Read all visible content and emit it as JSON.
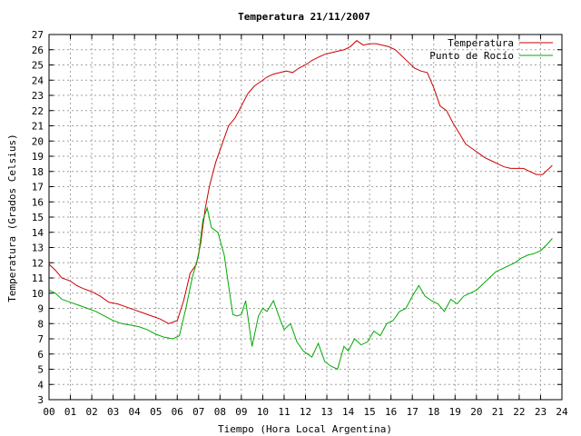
{
  "chart_data": {
    "type": "line",
    "title": "Temperatura 21/11/2007",
    "xlabel": "Tiempo (Hora Local Argentina)",
    "ylabel": "Temperatura (Grados Celsius)",
    "xlim": [
      0,
      24
    ],
    "ylim": [
      3,
      27
    ],
    "x_ticks": [
      "00",
      "01",
      "02",
      "03",
      "04",
      "05",
      "06",
      "07",
      "08",
      "09",
      "10",
      "11",
      "12",
      "13",
      "14",
      "15",
      "16",
      "17",
      "18",
      "19",
      "20",
      "21",
      "22",
      "23",
      "24"
    ],
    "y_ticks": [
      "3",
      "4",
      "5",
      "6",
      "7",
      "8",
      "9",
      "10",
      "11",
      "12",
      "13",
      "14",
      "15",
      "16",
      "17",
      "18",
      "19",
      "20",
      "21",
      "22",
      "23",
      "24",
      "25",
      "26",
      "27"
    ],
    "grid": true,
    "legend_position": "top-right",
    "series": [
      {
        "name": "Temperatura",
        "color": "#cc0000",
        "x": [
          0,
          0.3,
          0.6,
          1.0,
          1.3,
          1.6,
          2.0,
          2.4,
          2.8,
          3.2,
          3.6,
          4.0,
          4.4,
          4.8,
          5.2,
          5.6,
          6.0,
          6.3,
          6.6,
          6.9,
          7.1,
          7.3,
          7.5,
          7.8,
          8.1,
          8.4,
          8.7,
          9.0,
          9.3,
          9.6,
          9.9,
          10.2,
          10.5,
          10.8,
          11.1,
          11.4,
          11.7,
          12.0,
          12.3,
          12.6,
          12.9,
          13.2,
          13.5,
          13.8,
          14.1,
          14.4,
          14.7,
          15.0,
          15.3,
          15.6,
          15.9,
          16.2,
          16.5,
          16.8,
          17.1,
          17.4,
          17.7,
          18.0,
          18.3,
          18.6,
          18.9,
          19.2,
          19.5,
          19.8,
          20.1,
          20.4,
          20.7,
          21.0,
          21.3,
          21.6,
          21.9,
          22.2,
          22.5,
          22.8,
          23.1,
          23.4,
          23.55
        ],
        "values": [
          11.9,
          11.5,
          11.0,
          10.8,
          10.5,
          10.3,
          10.1,
          9.8,
          9.4,
          9.3,
          9.1,
          8.9,
          8.7,
          8.5,
          8.3,
          8.0,
          8.2,
          9.5,
          11.3,
          11.9,
          13.3,
          15.5,
          17.0,
          18.6,
          19.8,
          21.0,
          21.5,
          22.3,
          23.1,
          23.6,
          23.9,
          24.2,
          24.4,
          24.5,
          24.6,
          24.5,
          24.8,
          25.0,
          25.3,
          25.5,
          25.7,
          25.8,
          25.9,
          26.0,
          26.2,
          26.6,
          26.3,
          26.4,
          26.4,
          26.3,
          26.2,
          26.0,
          25.6,
          25.2,
          24.8,
          24.6,
          24.5,
          23.5,
          22.3,
          22.0,
          21.2,
          20.5,
          19.8,
          19.5,
          19.2,
          18.9,
          18.7,
          18.5,
          18.3,
          18.2,
          18.2,
          18.2,
          18.0,
          17.8,
          17.8,
          18.2,
          18.4
        ]
      },
      {
        "name": "Punto de Rocío",
        "color": "#00aa00",
        "x": [
          0,
          0.3,
          0.6,
          1.0,
          1.4,
          1.8,
          2.2,
          2.6,
          3.0,
          3.4,
          3.8,
          4.2,
          4.6,
          5.0,
          5.4,
          5.8,
          6.1,
          6.4,
          6.7,
          7.0,
          7.2,
          7.4,
          7.6,
          7.9,
          8.2,
          8.4,
          8.6,
          8.8,
          9.0,
          9.2,
          9.5,
          9.8,
          10.0,
          10.2,
          10.5,
          10.8,
          11.0,
          11.3,
          11.6,
          11.9,
          12.1,
          12.3,
          12.6,
          12.9,
          13.2,
          13.5,
          13.8,
          14.0,
          14.3,
          14.6,
          14.9,
          15.2,
          15.5,
          15.8,
          16.1,
          16.4,
          16.7,
          17.0,
          17.3,
          17.6,
          17.9,
          18.2,
          18.5,
          18.8,
          19.1,
          19.4,
          19.7,
          20.0,
          20.3,
          20.6,
          20.9,
          21.2,
          21.5,
          21.8,
          22.1,
          22.4,
          22.7,
          23.0,
          23.3,
          23.55
        ],
        "values": [
          10.2,
          10.0,
          9.6,
          9.4,
          9.2,
          9.0,
          8.8,
          8.5,
          8.2,
          8.0,
          7.9,
          7.8,
          7.6,
          7.3,
          7.1,
          7.0,
          7.2,
          9.0,
          11.0,
          12.5,
          14.8,
          15.6,
          14.3,
          14.0,
          12.5,
          10.5,
          8.6,
          8.5,
          8.6,
          9.5,
          6.5,
          8.5,
          9.0,
          8.8,
          9.5,
          8.3,
          7.6,
          8.0,
          6.8,
          6.2,
          6.0,
          5.8,
          6.7,
          5.5,
          5.2,
          5.0,
          6.5,
          6.2,
          7.0,
          6.6,
          6.8,
          7.5,
          7.2,
          8.0,
          8.2,
          8.8,
          9.0,
          9.8,
          10.5,
          9.8,
          9.5,
          9.3,
          8.8,
          9.6,
          9.3,
          9.8,
          10.0,
          10.2,
          10.6,
          11.0,
          11.4,
          11.6,
          11.8,
          12.0,
          12.3,
          12.5,
          12.6,
          12.8,
          13.2,
          13.6
        ]
      }
    ]
  }
}
